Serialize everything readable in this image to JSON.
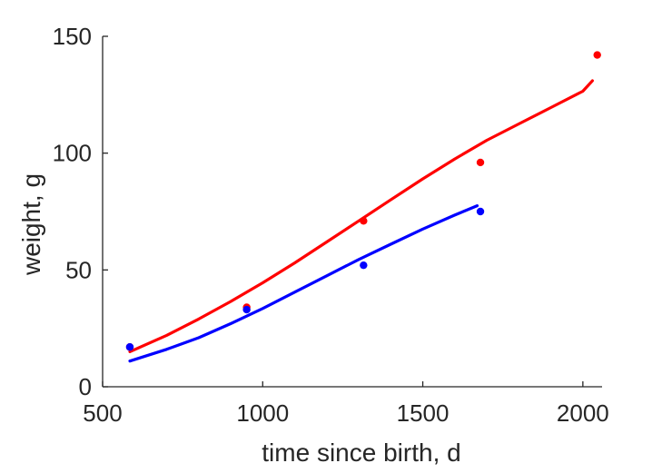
{
  "chart_data": {
    "type": "scatter",
    "title": "",
    "xlabel": "time since birth, d",
    "ylabel": "weight, g",
    "xlim": [
      500,
      2060
    ],
    "ylim": [
      0,
      150
    ],
    "xticks": [
      500,
      1000,
      1500,
      2000
    ],
    "yticks": [
      0,
      50,
      100,
      150
    ],
    "grid": false,
    "legend": "none",
    "series": [
      {
        "color": "#ff0000",
        "points": [
          {
            "x": 585,
            "y": 17
          },
          {
            "x": 950,
            "y": 34
          },
          {
            "x": 1315,
            "y": 71
          },
          {
            "x": 1680,
            "y": 96
          },
          {
            "x": 2045,
            "y": 142
          }
        ],
        "fit": [
          {
            "x": 585,
            "y": 15
          },
          {
            "x": 700,
            "y": 22
          },
          {
            "x": 800,
            "y": 29
          },
          {
            "x": 900,
            "y": 36.5
          },
          {
            "x": 1000,
            "y": 44.5
          },
          {
            "x": 1100,
            "y": 53
          },
          {
            "x": 1200,
            "y": 62
          },
          {
            "x": 1300,
            "y": 71
          },
          {
            "x": 1400,
            "y": 80
          },
          {
            "x": 1500,
            "y": 89
          },
          {
            "x": 1600,
            "y": 97.5
          },
          {
            "x": 1700,
            "y": 105.5
          },
          {
            "x": 1800,
            "y": 112.5
          },
          {
            "x": 1900,
            "y": 119.5
          },
          {
            "x": 2000,
            "y": 126.5
          },
          {
            "x": 2030,
            "y": 131
          }
        ]
      },
      {
        "color": "#0000ff",
        "points": [
          {
            "x": 585,
            "y": 17
          },
          {
            "x": 950,
            "y": 33
          },
          {
            "x": 1315,
            "y": 52
          },
          {
            "x": 1680,
            "y": 75
          }
        ],
        "fit": [
          {
            "x": 585,
            "y": 11
          },
          {
            "x": 700,
            "y": 16
          },
          {
            "x": 800,
            "y": 21
          },
          {
            "x": 900,
            "y": 27
          },
          {
            "x": 1000,
            "y": 33.5
          },
          {
            "x": 1100,
            "y": 40.5
          },
          {
            "x": 1200,
            "y": 47.5
          },
          {
            "x": 1300,
            "y": 54.5
          },
          {
            "x": 1400,
            "y": 61
          },
          {
            "x": 1500,
            "y": 67.5
          },
          {
            "x": 1600,
            "y": 73.5
          },
          {
            "x": 1670,
            "y": 77.5
          }
        ]
      }
    ]
  }
}
